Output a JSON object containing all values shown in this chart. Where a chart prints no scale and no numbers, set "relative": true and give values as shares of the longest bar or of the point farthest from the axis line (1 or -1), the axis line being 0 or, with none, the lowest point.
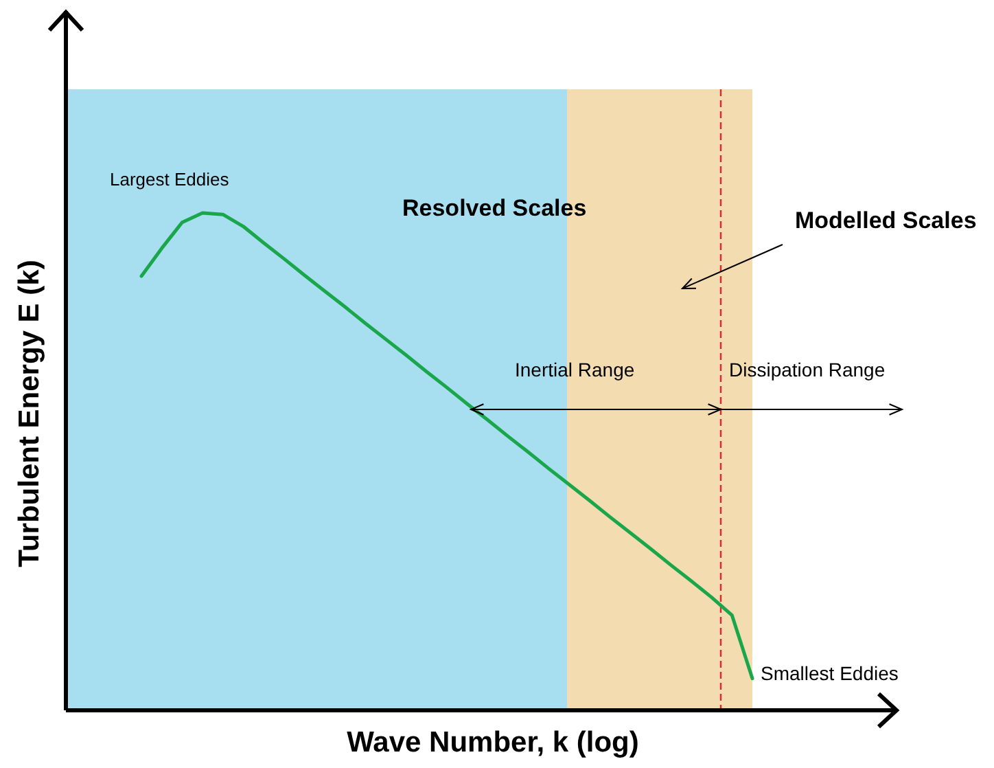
{
  "chart_data": {
    "type": "line",
    "relative": true,
    "xlabel": "Wave Number, k (log)",
    "ylabel": "Turbulent Energy E (k)",
    "marker": "none",
    "line_style": "solid",
    "categories": [
      null,
      null,
      null,
      null,
      null,
      null,
      null,
      null,
      null,
      null,
      null,
      null,
      null,
      null,
      null,
      null,
      null,
      null,
      null,
      null,
      null,
      null,
      null,
      null,
      null,
      null,
      null,
      null,
      null,
      null,
      null
    ],
    "series": [
      {
        "color": "#1aa64a",
        "values": [
          0.873,
          0.929,
          0.981,
          1,
          0.997,
          0.973,
          0.94,
          0.908,
          0.875,
          0.843,
          0.811,
          0.778,
          0.746,
          0.714,
          0.681,
          0.649,
          0.616,
          0.584,
          0.551,
          0.519,
          0.486,
          0.454,
          0.422,
          0.389,
          0.357,
          0.325,
          0.292,
          0.26,
          0.227,
          0.191,
          0.064
        ]
      }
    ],
    "ref_lines": [
      {
        "axis": "x",
        "color": "#e8262a",
        "line_style": "dashed"
      }
    ],
    "annotations": [
      "Largest Eddies",
      "Resolved Scales",
      "Modelled Scales",
      "Inertial Range",
      "Dissipation Range",
      "Smallest Eddies"
    ]
  }
}
